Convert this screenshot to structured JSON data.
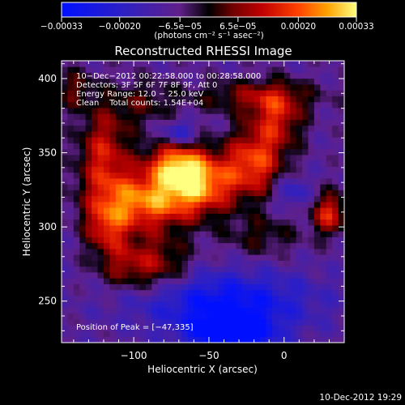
{
  "chart_data": {
    "type": "heatmap",
    "title": "Reconstructed RHESSI Image",
    "xlabel": "Heliocentric X (arcsec)",
    "ylabel": "Heliocentric Y (arcsec)",
    "xlim": [
      -148,
      40
    ],
    "ylim": [
      222,
      412
    ],
    "xticks": [
      -100,
      -50,
      0
    ],
    "xtick_labels": [
      "−100",
      "−50",
      "0"
    ],
    "yticks": [
      250,
      300,
      350,
      400
    ],
    "ytick_labels": [
      "250",
      "300",
      "350",
      "400"
    ],
    "colorbar": {
      "range": [
        -0.00033,
        0.00033
      ],
      "ticks": [
        -0.00033,
        -0.0002,
        -6.5e-05,
        6.5e-05,
        0.0002,
        0.00033
      ],
      "tick_labels": [
        "−0.00033",
        "−0.00020",
        "−6.5e−05",
        "6.5e−05",
        "0.00020",
        "0.00033"
      ],
      "unit_label": "(photons cm⁻² s⁻¹ asec⁻²)"
    },
    "annotations": [
      "10−Dec−2012 00:22:58.000 to 00:28:58.000",
      "Detectors: 3F 5F 6F 7F 8F 9F, Att 0",
      "Energy Range: 12.0 − 25.0 keV",
      "Clean    Total counts: 1.54E+04"
    ],
    "peak_label": "Position of Peak = [−47,335]",
    "peak": [
      -47,
      335
    ],
    "sources": [
      {
        "x": -95,
        "y": 318,
        "sx": 22,
        "sy": 14,
        "amp": 0.0003
      },
      {
        "x": -58,
        "y": 330,
        "sx": 18,
        "sy": 14,
        "amp": 0.00033
      },
      {
        "x": -72,
        "y": 345,
        "sx": 14,
        "sy": 10,
        "amp": 0.00024
      },
      {
        "x": -120,
        "y": 350,
        "sx": 12,
        "sy": 22,
        "amp": 0.00022
      },
      {
        "x": -118,
        "y": 300,
        "sx": 10,
        "sy": 12,
        "amp": 0.00018
      },
      {
        "x": -105,
        "y": 275,
        "sx": 14,
        "sy": 12,
        "amp": 0.00016
      },
      {
        "x": -80,
        "y": 275,
        "sx": 14,
        "sy": 14,
        "amp": 0.00014
      },
      {
        "x": -20,
        "y": 345,
        "sx": 14,
        "sy": 16,
        "amp": 0.00026
      },
      {
        "x": -5,
        "y": 375,
        "sx": 12,
        "sy": 14,
        "amp": 0.0002
      },
      {
        "x": 30,
        "y": 310,
        "sx": 8,
        "sy": 10,
        "amp": 0.00024
      },
      {
        "x": -20,
        "y": 390,
        "sx": 30,
        "sy": 8,
        "amp": 0.00014
      },
      {
        "x": -140,
        "y": 395,
        "sx": 10,
        "sy": 10,
        "amp": 0.00012
      },
      {
        "x": -15,
        "y": 295,
        "sx": 18,
        "sy": 10,
        "amp": 0.0001
      },
      {
        "x": -95,
        "y": 385,
        "sx": 16,
        "sy": 12,
        "amp": 0.0001
      },
      {
        "x": -40,
        "y": 250,
        "sx": 40,
        "sy": 14,
        "amp": -0.00022
      },
      {
        "x": -35,
        "y": 228,
        "sx": 20,
        "sy": 10,
        "amp": -0.0003
      },
      {
        "x": -70,
        "y": 365,
        "sx": 8,
        "sy": 6,
        "amp": -0.00014
      },
      {
        "x": 5,
        "y": 325,
        "sx": 8,
        "sy": 8,
        "amp": -0.00012
      }
    ]
  },
  "footer": {
    "timestamp": "10-Dec-2012 19:29"
  }
}
